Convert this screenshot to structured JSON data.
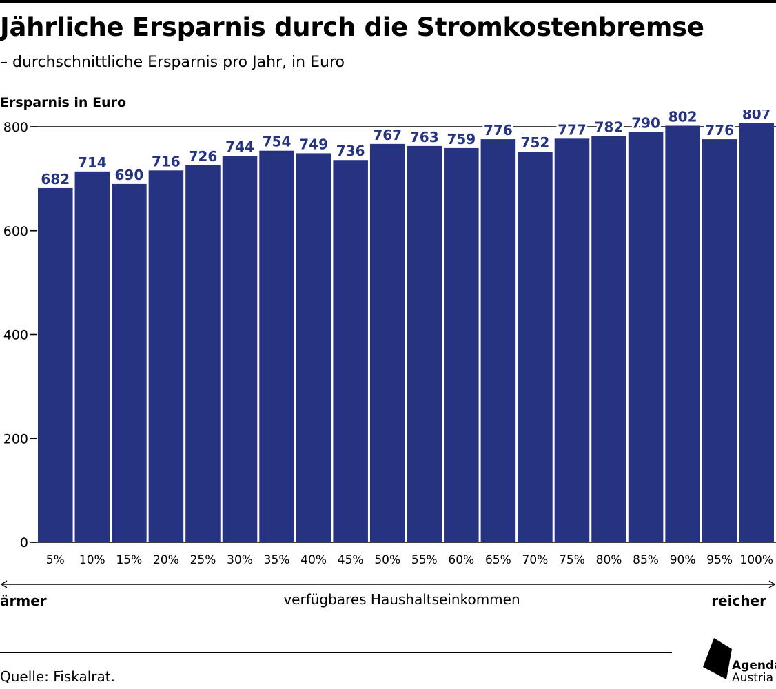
{
  "header": {
    "title": "Jährliche Ersparnis durch die Stromkostenbremse",
    "subtitle": "– durchschnittliche Ersparnis pro Jahr, in Euro"
  },
  "footer": {
    "source": "Quelle: Fiskalrat.",
    "logo_line1": "Agenda",
    "logo_line2": "Austria"
  },
  "colors": {
    "bar": "#263381",
    "label": "#263381"
  },
  "chart_data": {
    "type": "bar",
    "ylabel": "Ersparnis in Euro",
    "xlabel": "verfügbares Haushaltseinkommen",
    "x_left_label": "ärmer",
    "x_right_label": "reicher",
    "categories": [
      "5%",
      "10%",
      "15%",
      "20%",
      "25%",
      "30%",
      "35%",
      "40%",
      "45%",
      "50%",
      "55%",
      "60%",
      "65%",
      "70%",
      "75%",
      "80%",
      "85%",
      "90%",
      "95%",
      "100%"
    ],
    "values": [
      682,
      714,
      690,
      716,
      726,
      744,
      754,
      749,
      736,
      767,
      763,
      759,
      776,
      752,
      777,
      782,
      790,
      802,
      776,
      807
    ],
    "ylim": [
      0,
      800
    ],
    "yticks": [
      0,
      200,
      400,
      600,
      800
    ],
    "data_labels": true,
    "gridline_at_max": true
  }
}
